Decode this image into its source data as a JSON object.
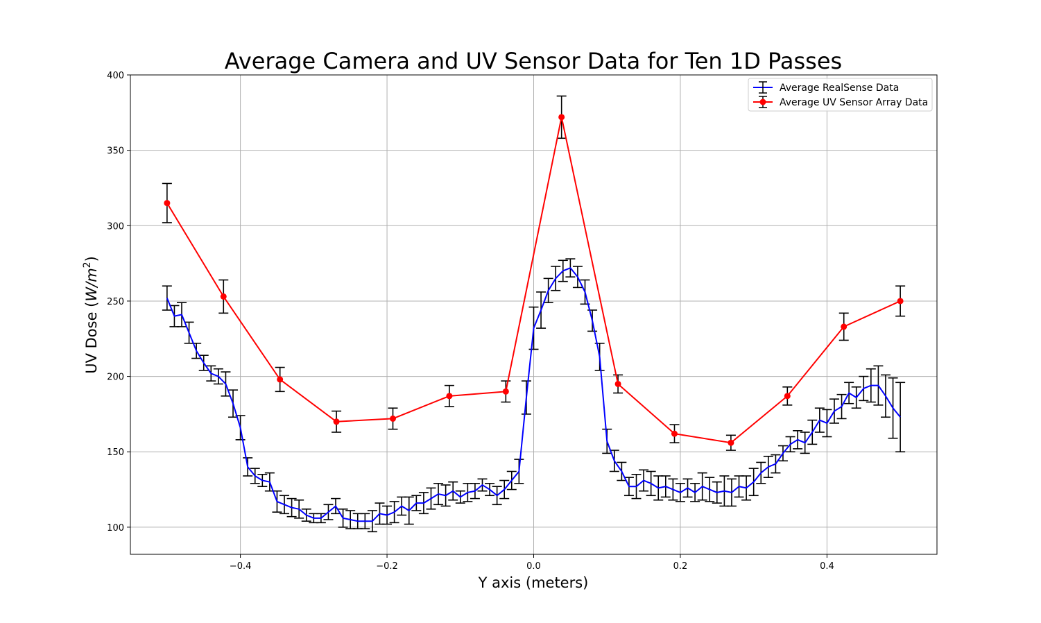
{
  "chart_data": {
    "type": "line",
    "title": "Average Camera and UV Sensor Data for Ten 1D Passes",
    "xlabel": "Y axis (meters)",
    "ylabel_prefix": "UV Dose (",
    "ylabel_var": "W/m",
    "ylabel_exp": "2",
    "ylabel_suffix": ")",
    "xlim": [
      -0.55,
      0.55
    ],
    "ylim": [
      82,
      400
    ],
    "xticks": [
      -0.4,
      -0.2,
      0.0,
      0.2,
      0.4
    ],
    "xtick_labels": [
      "−0.4",
      "−0.2",
      "0.0",
      "0.2",
      "0.4"
    ],
    "yticks": [
      100,
      150,
      200,
      250,
      300,
      350,
      400
    ],
    "ytick_labels": [
      "100",
      "150",
      "200",
      "250",
      "300",
      "350",
      "400"
    ],
    "grid": true,
    "legend_position": "top-right",
    "series": [
      {
        "name": "Average RealSense Data",
        "color": "#0000ff",
        "error_color": "#000000",
        "marker": "none",
        "x": [
          -0.5,
          -0.49,
          -0.48,
          -0.47,
          -0.46,
          -0.45,
          -0.44,
          -0.43,
          -0.42,
          -0.41,
          -0.4,
          -0.39,
          -0.38,
          -0.37,
          -0.36,
          -0.35,
          -0.34,
          -0.33,
          -0.32,
          -0.31,
          -0.3,
          -0.29,
          -0.28,
          -0.27,
          -0.26,
          -0.25,
          -0.24,
          -0.23,
          -0.22,
          -0.21,
          -0.2,
          -0.19,
          -0.18,
          -0.17,
          -0.16,
          -0.15,
          -0.14,
          -0.13,
          -0.12,
          -0.11,
          -0.1,
          -0.09,
          -0.08,
          -0.07,
          -0.06,
          -0.05,
          -0.04,
          -0.03,
          -0.02,
          -0.01,
          0.0,
          0.01,
          0.02,
          0.03,
          0.04,
          0.05,
          0.06,
          0.07,
          0.08,
          0.09,
          0.1,
          0.11,
          0.12,
          0.13,
          0.14,
          0.15,
          0.16,
          0.17,
          0.18,
          0.19,
          0.2,
          0.21,
          0.22,
          0.23,
          0.24,
          0.25,
          0.26,
          0.27,
          0.28,
          0.29,
          0.3,
          0.31,
          0.32,
          0.33,
          0.34,
          0.35,
          0.36,
          0.37,
          0.38,
          0.39,
          0.4,
          0.41,
          0.42,
          0.43,
          0.44,
          0.45,
          0.46,
          0.47,
          0.48,
          0.49,
          0.5
        ],
        "y": [
          252,
          240,
          241,
          229,
          217,
          209,
          202,
          200,
          195,
          182,
          166,
          140,
          134,
          131,
          130,
          117,
          115,
          113,
          112,
          108,
          106,
          106,
          110,
          114,
          106,
          105,
          104,
          104,
          104,
          109,
          108,
          110,
          114,
          111,
          116,
          116,
          119,
          122,
          121,
          124,
          120,
          123,
          124,
          128,
          125,
          121,
          125,
          131,
          137,
          186,
          232,
          244,
          257,
          265,
          270,
          272,
          266,
          256,
          237,
          213,
          157,
          144,
          137,
          127,
          127,
          131,
          129,
          126,
          127,
          125,
          123,
          126,
          123,
          127,
          125,
          123,
          124,
          123,
          127,
          126,
          130,
          136,
          140,
          142,
          149,
          155,
          158,
          156,
          163,
          171,
          169,
          177,
          180,
          189,
          186,
          192,
          194,
          194,
          187,
          179,
          173
        ],
        "err": [
          8,
          7,
          8,
          7,
          5,
          5,
          5,
          5,
          8,
          9,
          8,
          6,
          5,
          4,
          6,
          7,
          6,
          6,
          6,
          4,
          3,
          3,
          5,
          5,
          6,
          6,
          5,
          5,
          7,
          7,
          6,
          7,
          6,
          9,
          5,
          7,
          7,
          7,
          7,
          6,
          4,
          6,
          5,
          4,
          4,
          6,
          6,
          6,
          8,
          11,
          14,
          12,
          8,
          8,
          7,
          6,
          7,
          8,
          7,
          9,
          8,
          7,
          6,
          6,
          8,
          7,
          8,
          8,
          7,
          7,
          6,
          6,
          6,
          9,
          8,
          7,
          10,
          9,
          7,
          8,
          9,
          7,
          7,
          6,
          5,
          5,
          6,
          7,
          8,
          8,
          9,
          8,
          8,
          7,
          7,
          8,
          11,
          13,
          14,
          20,
          23
        ]
      },
      {
        "name": "Average UV Sensor Array Data",
        "color": "#ff0000",
        "error_color": "#000000",
        "marker": "circle",
        "x": [
          -0.5,
          -0.423,
          -0.346,
          -0.269,
          -0.192,
          -0.115,
          -0.038,
          0.038,
          0.115,
          0.192,
          0.269,
          0.346,
          0.423,
          0.5
        ],
        "y": [
          315,
          253,
          198,
          170,
          172,
          187,
          190,
          372,
          195,
          162,
          156,
          187,
          233,
          250
        ],
        "err": [
          13,
          11,
          8,
          7,
          7,
          7,
          7,
          14,
          6,
          6,
          5,
          6,
          9,
          10
        ]
      }
    ]
  }
}
